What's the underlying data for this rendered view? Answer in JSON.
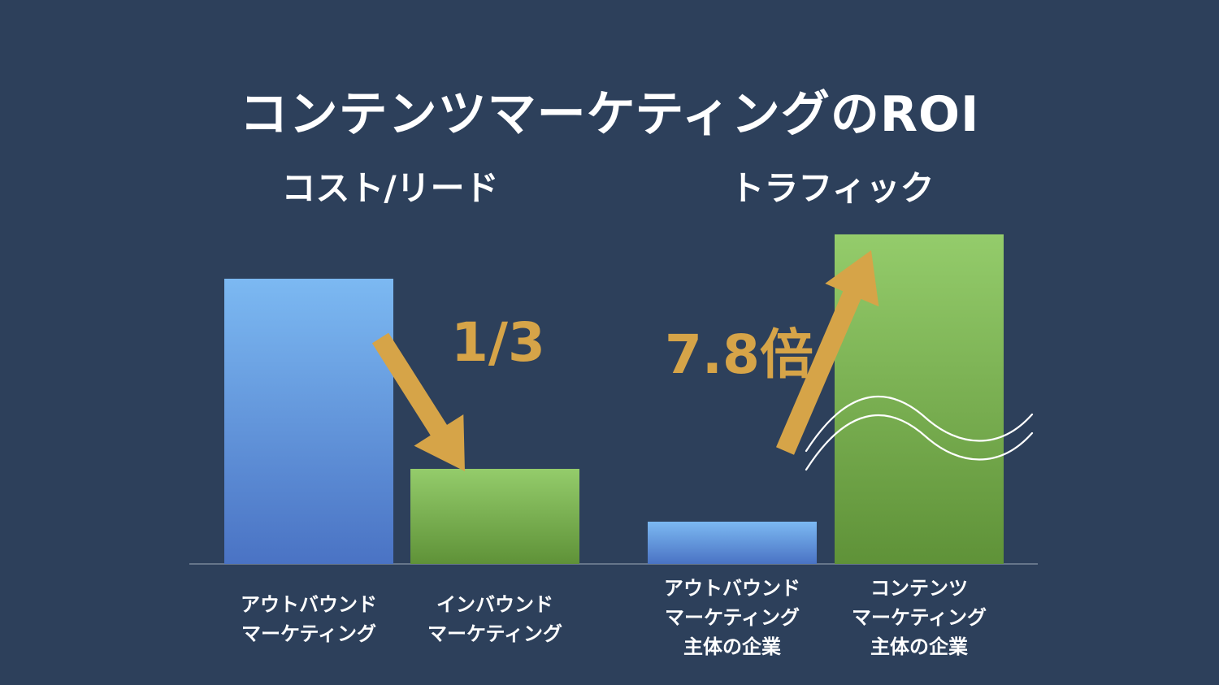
{
  "title": "コンテンツマーケティングのROI",
  "chart_data": [
    {
      "type": "bar",
      "title": "コスト/リード",
      "categories": [
        [
          "アウトバウンド",
          "マーケティング"
        ],
        [
          "インバウンド",
          "マーケティング"
        ]
      ],
      "values": [
        3,
        1
      ],
      "colors": [
        "#6aa5e8",
        "#7cb45a"
      ],
      "annotation": "1/3",
      "ylim": [
        0,
        3.3
      ],
      "grid": false,
      "legend": "none"
    },
    {
      "type": "bar",
      "title": "トラフィック",
      "categories": [
        [
          "アウトバウンド",
          "マーケティング",
          "主体の企業"
        ],
        [
          "コンテンツ",
          "マーケティング",
          "主体の企業"
        ]
      ],
      "values": [
        1,
        7.8
      ],
      "colors": [
        "#6aa5e8",
        "#7cb45a"
      ],
      "annotation": "7.8倍",
      "axis_break": true,
      "grid": false,
      "legend": "none"
    }
  ],
  "colors": {
    "background": "#2d405b",
    "accent_arrow": "#d6a448",
    "blue_top": "#7cb9f2",
    "blue_bottom": "#4a73c4",
    "green_top": "#94cc6b",
    "green_bottom": "#5f9238"
  }
}
